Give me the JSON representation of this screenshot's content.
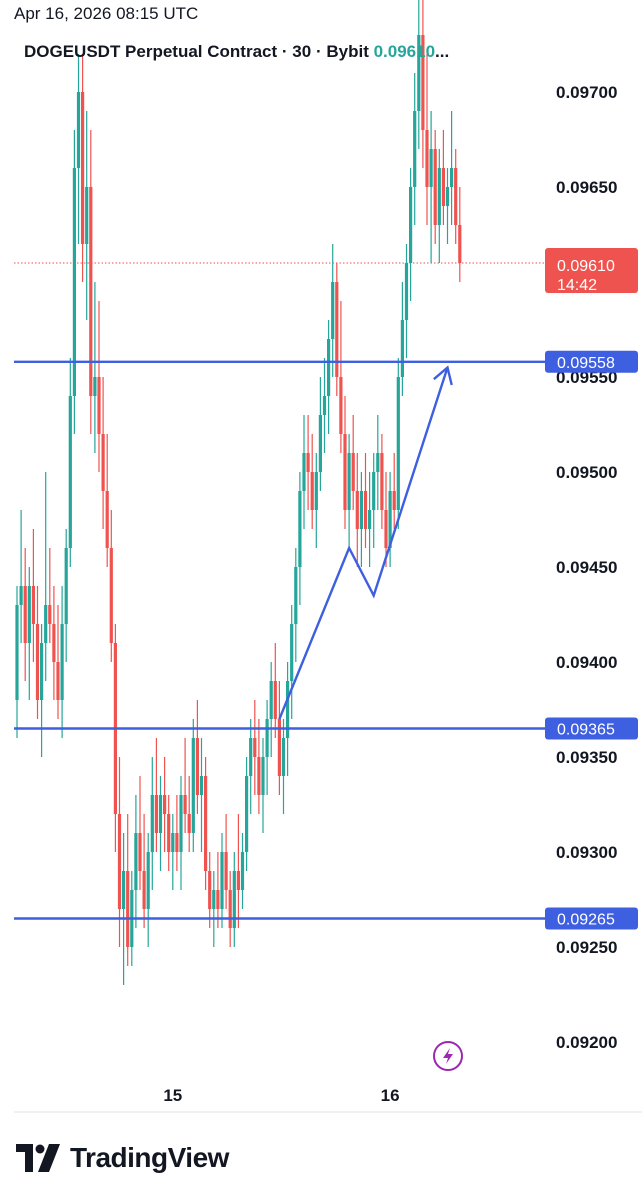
{
  "timestamp": "Apr 16, 2026 08:15 UTC",
  "header": {
    "symbol": "DOGEUSDT Perpetual Contract",
    "separator": "·",
    "interval": "30",
    "exchange": "Bybit",
    "last_price": "0.09610",
    "ellipsis": "..."
  },
  "footer": {
    "brand": "TradingView",
    "logo_icon": "tradingview-logo-icon"
  },
  "flash_icon": "lightning-icon",
  "colors": {
    "up": "#26a69a",
    "down": "#ef5350",
    "line": "#3d5fe0",
    "last_price_tag": "#ef5350",
    "flash": "#9c27b0"
  },
  "chart_data": {
    "type": "candlestick",
    "ylim": [
      0.0917,
      0.0974
    ],
    "y_ticks": [
      "0.09700",
      "0.09650",
      "0.09600",
      "0.09550",
      "0.09500",
      "0.09450",
      "0.09400",
      "0.09350",
      "0.09300",
      "0.09250",
      "0.09200"
    ],
    "y_tick_values": [
      0.097,
      0.0965,
      0.096,
      0.0955,
      0.095,
      0.0945,
      0.094,
      0.0935,
      0.093,
      0.0925,
      0.092
    ],
    "x_ticks": [
      {
        "label": "15",
        "index": 38
      },
      {
        "label": "16",
        "index": 91
      }
    ],
    "last_price": {
      "value": 0.0961,
      "label": "0.09610",
      "countdown": "14:42"
    },
    "horizontal_levels": [
      {
        "value": 0.09558,
        "label": "0.09558"
      },
      {
        "value": 0.09365,
        "label": "0.09365"
      },
      {
        "value": 0.09265,
        "label": "0.09265"
      }
    ],
    "trend_path": [
      {
        "i": 64,
        "v": 0.0937
      },
      {
        "i": 81,
        "v": 0.0946
      },
      {
        "i": 87,
        "v": 0.09435
      },
      {
        "i": 105,
        "v": 0.09555
      }
    ],
    "candles": [
      [
        0.0938,
        0.0944,
        0.0936,
        0.0943
      ],
      [
        0.0943,
        0.0948,
        0.0941,
        0.0944
      ],
      [
        0.0944,
        0.0946,
        0.0939,
        0.0941
      ],
      [
        0.0941,
        0.0945,
        0.0938,
        0.0944
      ],
      [
        0.0944,
        0.0947,
        0.094,
        0.0942
      ],
      [
        0.0942,
        0.0944,
        0.0937,
        0.0938
      ],
      [
        0.0938,
        0.0942,
        0.0935,
        0.0941
      ],
      [
        0.0941,
        0.095,
        0.0939,
        0.0943
      ],
      [
        0.0943,
        0.0946,
        0.0941,
        0.0942
      ],
      [
        0.0942,
        0.0944,
        0.0938,
        0.094
      ],
      [
        0.094,
        0.0943,
        0.0937,
        0.0938
      ],
      [
        0.0938,
        0.0944,
        0.0936,
        0.0942
      ],
      [
        0.0942,
        0.0947,
        0.094,
        0.0946
      ],
      [
        0.0946,
        0.0956,
        0.0945,
        0.0954
      ],
      [
        0.0954,
        0.0968,
        0.0952,
        0.0966
      ],
      [
        0.0966,
        0.0972,
        0.0962,
        0.097
      ],
      [
        0.097,
        0.0972,
        0.096,
        0.0962
      ],
      [
        0.0962,
        0.0969,
        0.0958,
        0.0965
      ],
      [
        0.0965,
        0.0968,
        0.0952,
        0.0954
      ],
      [
        0.0954,
        0.096,
        0.0951,
        0.0955
      ],
      [
        0.0955,
        0.0959,
        0.095,
        0.0952
      ],
      [
        0.0952,
        0.0955,
        0.0947,
        0.0949
      ],
      [
        0.0949,
        0.0952,
        0.0945,
        0.0946
      ],
      [
        0.0946,
        0.0948,
        0.094,
        0.0941
      ],
      [
        0.0941,
        0.0942,
        0.093,
        0.0932
      ],
      [
        0.0932,
        0.0935,
        0.0925,
        0.0927
      ],
      [
        0.0927,
        0.0931,
        0.0923,
        0.0929
      ],
      [
        0.0929,
        0.0932,
        0.0924,
        0.0925
      ],
      [
        0.0925,
        0.0929,
        0.0924,
        0.0928
      ],
      [
        0.0928,
        0.0933,
        0.0926,
        0.0931
      ],
      [
        0.0931,
        0.0934,
        0.0928,
        0.0929
      ],
      [
        0.0929,
        0.0932,
        0.0926,
        0.0927
      ],
      [
        0.0927,
        0.0931,
        0.0925,
        0.093
      ],
      [
        0.093,
        0.0935,
        0.0928,
        0.0933
      ],
      [
        0.0933,
        0.0936,
        0.093,
        0.0931
      ],
      [
        0.0931,
        0.0934,
        0.0929,
        0.0933
      ],
      [
        0.0933,
        0.0935,
        0.093,
        0.0932
      ],
      [
        0.0932,
        0.0933,
        0.0929,
        0.093
      ],
      [
        0.093,
        0.0932,
        0.0928,
        0.0931
      ],
      [
        0.0931,
        0.0933,
        0.0929,
        0.093
      ],
      [
        0.093,
        0.0934,
        0.0928,
        0.0933
      ],
      [
        0.0933,
        0.0936,
        0.0931,
        0.0932
      ],
      [
        0.0932,
        0.0934,
        0.093,
        0.0931
      ],
      [
        0.0931,
        0.0937,
        0.093,
        0.0936
      ],
      [
        0.0936,
        0.0938,
        0.0932,
        0.0933
      ],
      [
        0.0933,
        0.0936,
        0.093,
        0.0934
      ],
      [
        0.0934,
        0.0935,
        0.0928,
        0.0929
      ],
      [
        0.0929,
        0.093,
        0.0926,
        0.0927
      ],
      [
        0.0927,
        0.0929,
        0.0925,
        0.0928
      ],
      [
        0.0928,
        0.093,
        0.0926,
        0.0927
      ],
      [
        0.0927,
        0.0931,
        0.0926,
        0.093
      ],
      [
        0.093,
        0.0932,
        0.0927,
        0.0928
      ],
      [
        0.0928,
        0.0929,
        0.0925,
        0.0926
      ],
      [
        0.0926,
        0.093,
        0.0925,
        0.0929
      ],
      [
        0.0929,
        0.0932,
        0.0926,
        0.0928
      ],
      [
        0.0928,
        0.0931,
        0.0927,
        0.093
      ],
      [
        0.093,
        0.0935,
        0.0929,
        0.0934
      ],
      [
        0.0934,
        0.0937,
        0.0932,
        0.0936
      ],
      [
        0.0936,
        0.0938,
        0.0933,
        0.0935
      ],
      [
        0.0935,
        0.0937,
        0.0932,
        0.0933
      ],
      [
        0.0933,
        0.0936,
        0.0931,
        0.0935
      ],
      [
        0.0935,
        0.0938,
        0.0933,
        0.0937
      ],
      [
        0.0937,
        0.094,
        0.0935,
        0.0939
      ],
      [
        0.0939,
        0.0941,
        0.0936,
        0.0937
      ],
      [
        0.0937,
        0.0939,
        0.0933,
        0.0934
      ],
      [
        0.0934,
        0.0937,
        0.0932,
        0.0936
      ],
      [
        0.0936,
        0.094,
        0.0934,
        0.0939
      ],
      [
        0.0939,
        0.0943,
        0.0937,
        0.0942
      ],
      [
        0.0942,
        0.0946,
        0.094,
        0.0945
      ],
      [
        0.0945,
        0.095,
        0.0943,
        0.0949
      ],
      [
        0.0949,
        0.0953,
        0.0947,
        0.0951
      ],
      [
        0.0951,
        0.0953,
        0.0948,
        0.095
      ],
      [
        0.095,
        0.0952,
        0.0947,
        0.0948
      ],
      [
        0.0948,
        0.0951,
        0.0946,
        0.095
      ],
      [
        0.095,
        0.0955,
        0.0949,
        0.0953
      ],
      [
        0.0953,
        0.0956,
        0.0951,
        0.0954
      ],
      [
        0.0954,
        0.0958,
        0.0952,
        0.0957
      ],
      [
        0.0957,
        0.0962,
        0.0955,
        0.096
      ],
      [
        0.096,
        0.0961,
        0.0954,
        0.0955
      ],
      [
        0.0955,
        0.0959,
        0.0951,
        0.0952
      ],
      [
        0.0952,
        0.0954,
        0.0947,
        0.0948
      ],
      [
        0.0948,
        0.0952,
        0.0946,
        0.0951
      ],
      [
        0.0951,
        0.0953,
        0.0948,
        0.0949
      ],
      [
        0.0949,
        0.0951,
        0.0945,
        0.0947
      ],
      [
        0.0947,
        0.095,
        0.0945,
        0.0949
      ],
      [
        0.0949,
        0.0951,
        0.0946,
        0.0947
      ],
      [
        0.0947,
        0.095,
        0.0945,
        0.0948
      ],
      [
        0.0948,
        0.0951,
        0.0946,
        0.095
      ],
      [
        0.095,
        0.0953,
        0.0948,
        0.0951
      ],
      [
        0.0951,
        0.0952,
        0.0947,
        0.0948
      ],
      [
        0.0948,
        0.095,
        0.0945,
        0.0946
      ],
      [
        0.0946,
        0.095,
        0.0945,
        0.0949
      ],
      [
        0.0949,
        0.0951,
        0.0947,
        0.0948
      ],
      [
        0.0948,
        0.0956,
        0.0947,
        0.0955
      ],
      [
        0.0955,
        0.096,
        0.0954,
        0.0958
      ],
      [
        0.0958,
        0.0962,
        0.0956,
        0.0961
      ],
      [
        0.0961,
        0.0966,
        0.0959,
        0.0965
      ],
      [
        0.0965,
        0.0971,
        0.0963,
        0.0969
      ],
      [
        0.0969,
        0.0975,
        0.0967,
        0.0973
      ],
      [
        0.0973,
        0.0976,
        0.0966,
        0.0968
      ],
      [
        0.0968,
        0.0972,
        0.0963,
        0.0965
      ],
      [
        0.0965,
        0.0969,
        0.0961,
        0.0967
      ],
      [
        0.0967,
        0.0968,
        0.0962,
        0.0963
      ],
      [
        0.0963,
        0.0967,
        0.0961,
        0.0966
      ],
      [
        0.0966,
        0.0968,
        0.0963,
        0.0964
      ],
      [
        0.0964,
        0.0966,
        0.0962,
        0.0965
      ],
      [
        0.0965,
        0.0969,
        0.0963,
        0.0966
      ],
      [
        0.0966,
        0.0967,
        0.0962,
        0.0963
      ],
      [
        0.0963,
        0.0965,
        0.096,
        0.0961
      ]
    ]
  }
}
